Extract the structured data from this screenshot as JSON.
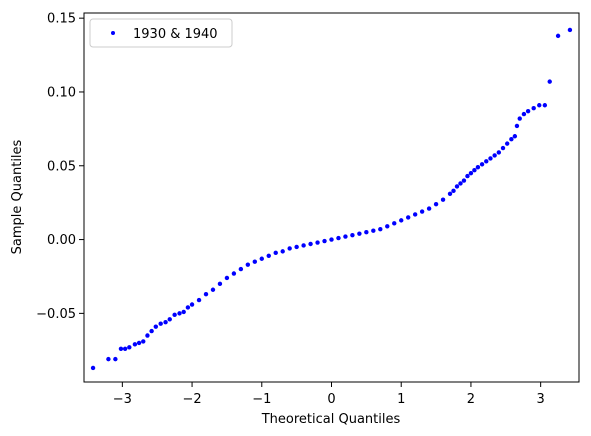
{
  "chart_data": {
    "type": "scatter",
    "xlabel": "Theoretical Quantiles",
    "ylabel": "Sample Quantiles",
    "xlim": [
      -3.55,
      3.55
    ],
    "ylim": [
      -0.0965,
      0.1535
    ],
    "xticks": [
      -3,
      -2,
      -1,
      0,
      1,
      2,
      3
    ],
    "xtick_labels": [
      "−3",
      "−2",
      "−1",
      "0",
      "1",
      "2",
      "3"
    ],
    "yticks": [
      -0.05,
      0.0,
      0.05,
      0.1,
      0.15
    ],
    "ytick_labels": [
      "−0.05",
      "0.00",
      "0.05",
      "0.10",
      "0.15"
    ],
    "grid": false,
    "legend": {
      "position": "top-left",
      "entries": [
        "1930 & 1940"
      ]
    },
    "series": [
      {
        "name": "1930 & 1940",
        "color": "#0000ff",
        "marker": "point",
        "points": [
          [
            -3.42,
            -0.087
          ],
          [
            -3.2,
            -0.081
          ],
          [
            -3.1,
            -0.081
          ],
          [
            -3.02,
            -0.074
          ],
          [
            -2.96,
            -0.074
          ],
          [
            -2.9,
            -0.073
          ],
          [
            -2.82,
            -0.071
          ],
          [
            -2.76,
            -0.07
          ],
          [
            -2.7,
            -0.069
          ],
          [
            -2.64,
            -0.065
          ],
          [
            -2.58,
            -0.062
          ],
          [
            -2.52,
            -0.059
          ],
          [
            -2.45,
            -0.057
          ],
          [
            -2.38,
            -0.056
          ],
          [
            -2.32,
            -0.054
          ],
          [
            -2.25,
            -0.051
          ],
          [
            -2.18,
            -0.05
          ],
          [
            -2.12,
            -0.049
          ],
          [
            -2.06,
            -0.046
          ],
          [
            -2.0,
            -0.044
          ],
          [
            -1.9,
            -0.041
          ],
          [
            -1.8,
            -0.037
          ],
          [
            -1.7,
            -0.034
          ],
          [
            -1.6,
            -0.03
          ],
          [
            -1.5,
            -0.026
          ],
          [
            -1.4,
            -0.023
          ],
          [
            -1.3,
            -0.02
          ],
          [
            -1.2,
            -0.017
          ],
          [
            -1.1,
            -0.015
          ],
          [
            -1.0,
            -0.013
          ],
          [
            -0.9,
            -0.011
          ],
          [
            -0.8,
            -0.009
          ],
          [
            -0.7,
            -0.008
          ],
          [
            -0.6,
            -0.006
          ],
          [
            -0.5,
            -0.005
          ],
          [
            -0.4,
            -0.004
          ],
          [
            -0.3,
            -0.003
          ],
          [
            -0.2,
            -0.002
          ],
          [
            -0.1,
            -0.001
          ],
          [
            0.0,
            0.0
          ],
          [
            0.1,
            0.001
          ],
          [
            0.2,
            0.002
          ],
          [
            0.3,
            0.003
          ],
          [
            0.4,
            0.004
          ],
          [
            0.5,
            0.005
          ],
          [
            0.6,
            0.006
          ],
          [
            0.7,
            0.007
          ],
          [
            0.8,
            0.009
          ],
          [
            0.9,
            0.011
          ],
          [
            1.0,
            0.013
          ],
          [
            1.1,
            0.015
          ],
          [
            1.2,
            0.017
          ],
          [
            1.3,
            0.019
          ],
          [
            1.4,
            0.021
          ],
          [
            1.5,
            0.024
          ],
          [
            1.6,
            0.027
          ],
          [
            1.7,
            0.031
          ],
          [
            1.75,
            0.033
          ],
          [
            1.8,
            0.036
          ],
          [
            1.85,
            0.038
          ],
          [
            1.9,
            0.04
          ],
          [
            1.95,
            0.043
          ],
          [
            2.0,
            0.045
          ],
          [
            2.05,
            0.047
          ],
          [
            2.1,
            0.049
          ],
          [
            2.16,
            0.051
          ],
          [
            2.22,
            0.053
          ],
          [
            2.28,
            0.055
          ],
          [
            2.34,
            0.057
          ],
          [
            2.4,
            0.059
          ],
          [
            2.46,
            0.062
          ],
          [
            2.52,
            0.065
          ],
          [
            2.58,
            0.068
          ],
          [
            2.63,
            0.07
          ],
          [
            2.66,
            0.077
          ],
          [
            2.7,
            0.082
          ],
          [
            2.76,
            0.085
          ],
          [
            2.82,
            0.087
          ],
          [
            2.9,
            0.089
          ],
          [
            2.98,
            0.091
          ],
          [
            3.06,
            0.091
          ],
          [
            3.13,
            0.107
          ],
          [
            3.25,
            0.138
          ],
          [
            3.42,
            0.142
          ]
        ]
      }
    ]
  }
}
